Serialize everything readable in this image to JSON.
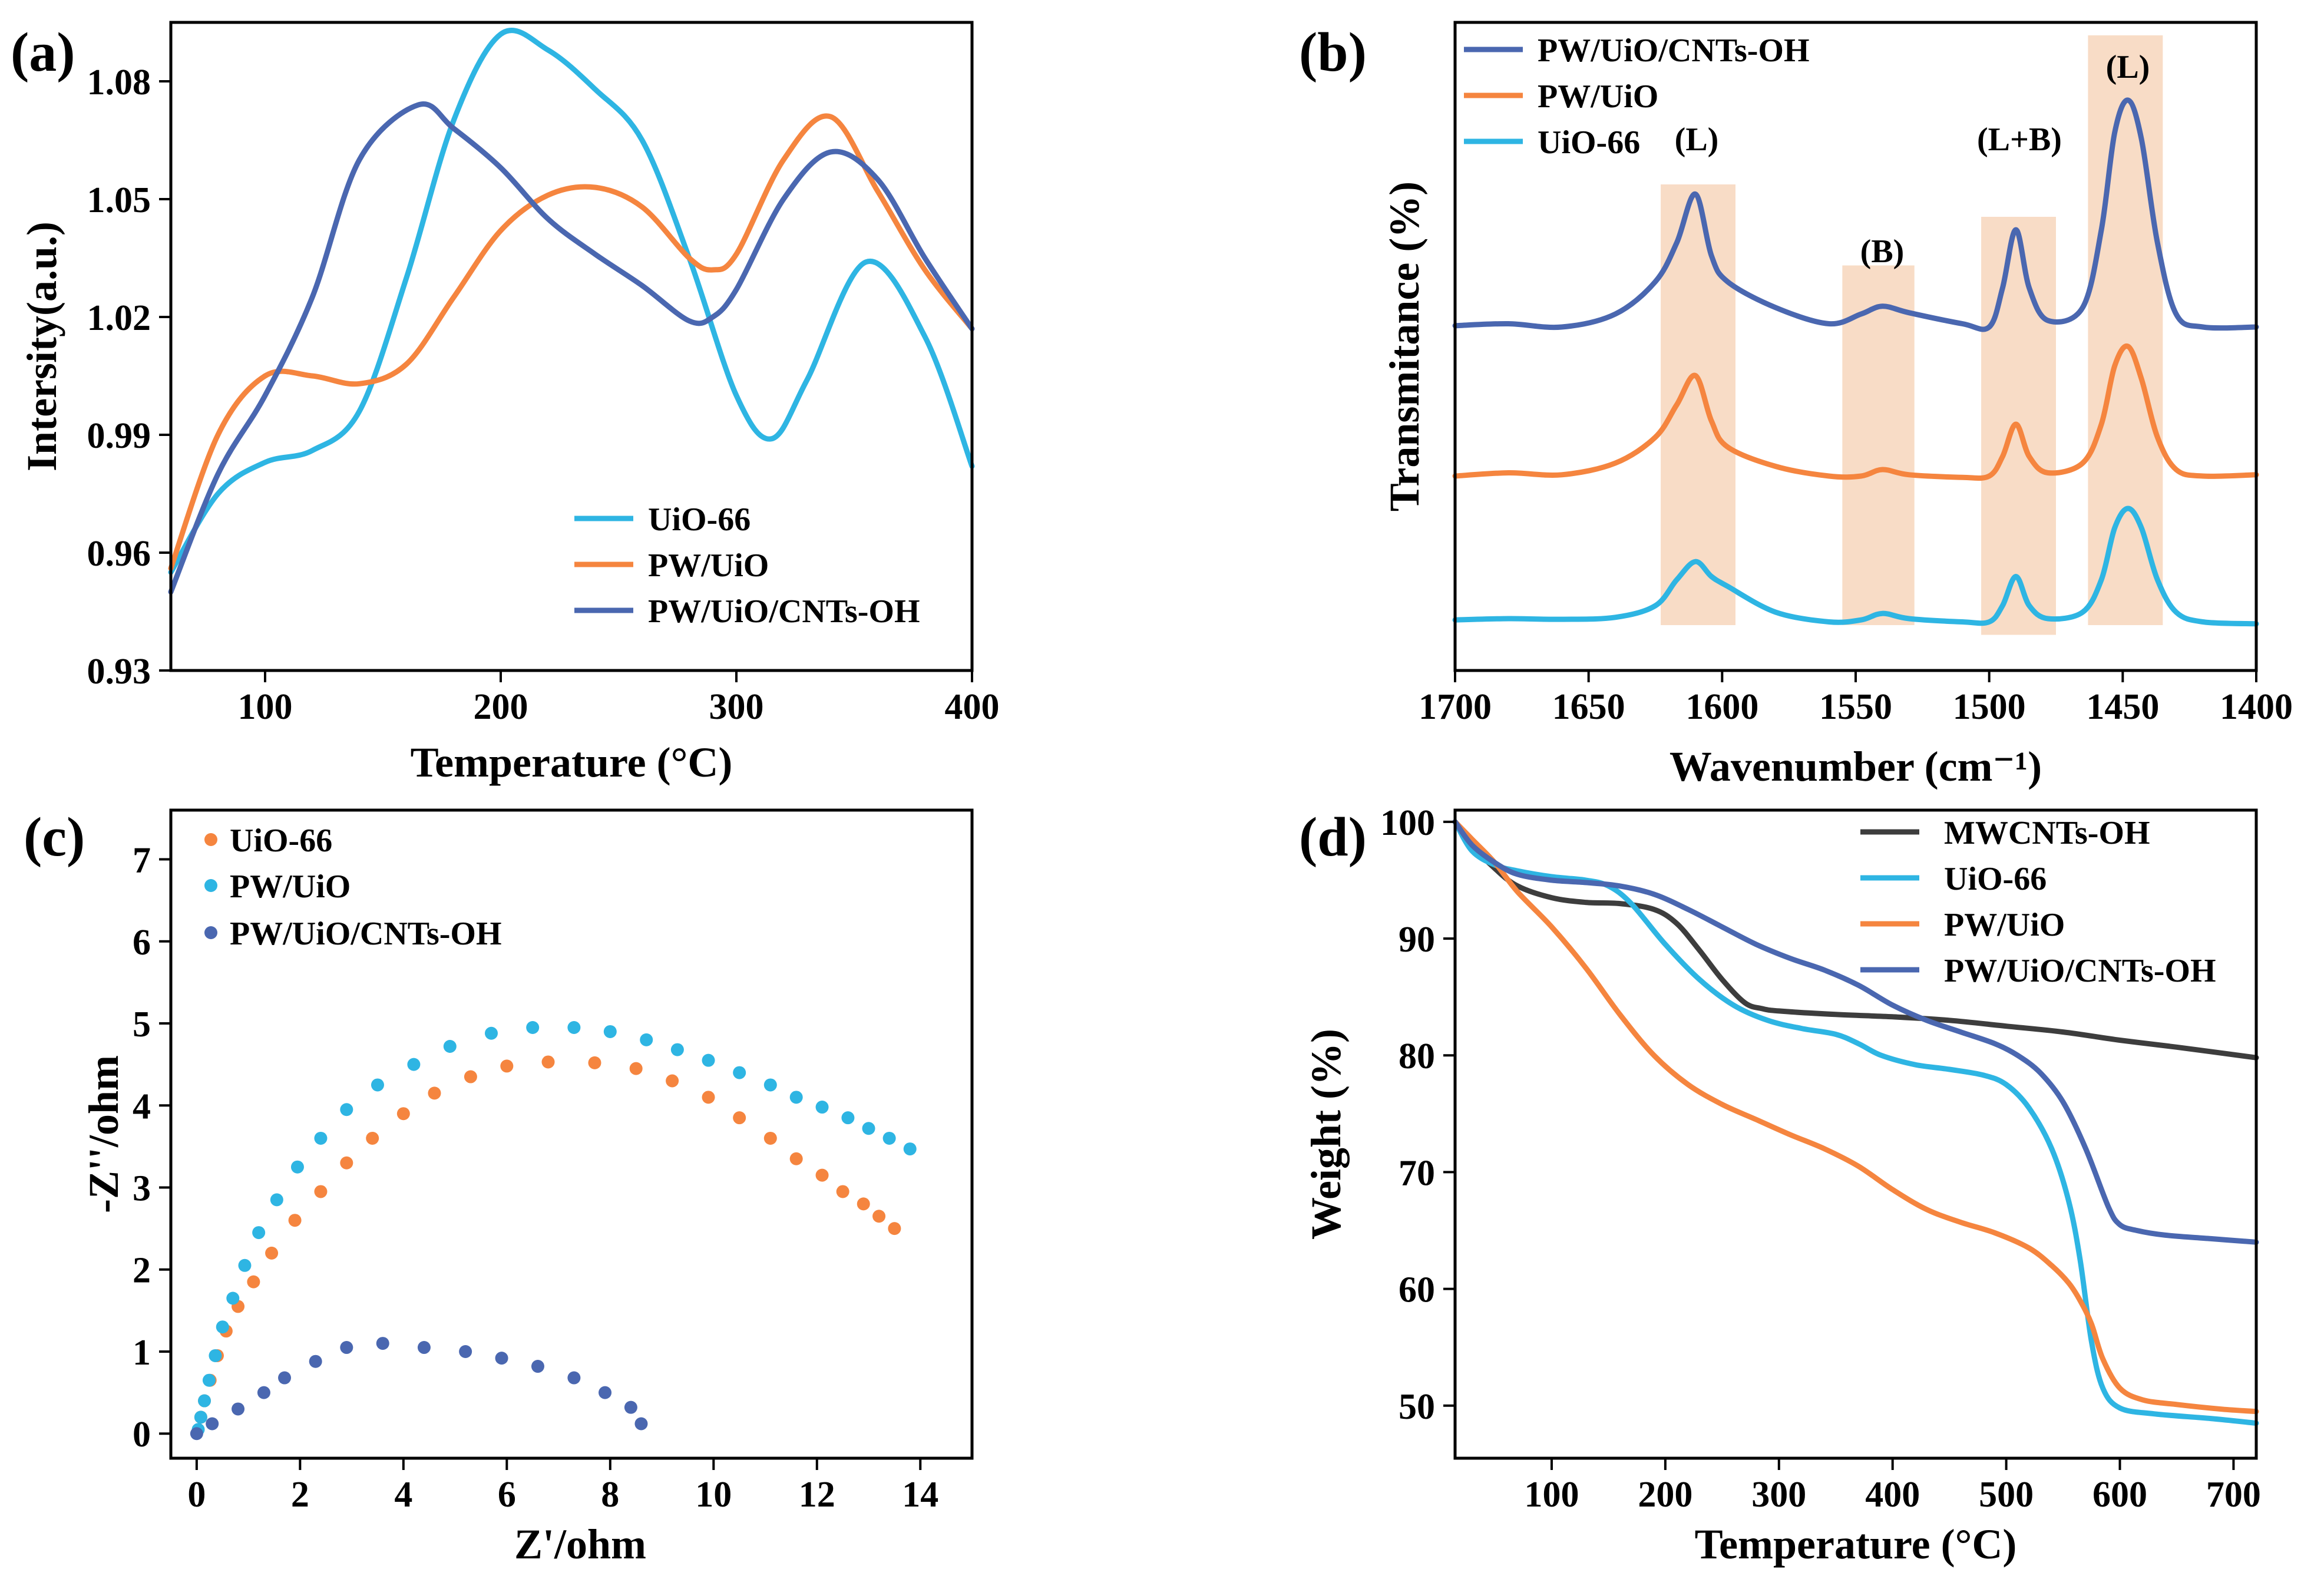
{
  "colors": {
    "cyan": "#2eb5e3",
    "orange": "#f5853f",
    "blue": "#4a67b0",
    "dark": "#3d3d3d",
    "band": "#f8dcc6"
  },
  "chart_data": [
    {
      "panel": "(a)",
      "type": "line",
      "xlabel": "Temperature (°C)",
      "ylabel": "Intersity(a.u.)",
      "xlim": [
        60,
        400
      ],
      "ylim": [
        0.93,
        1.095
      ],
      "xticks": [
        100,
        200,
        300,
        400
      ],
      "xtick_labels": [
        "100",
        "200",
        "300",
        "400"
      ],
      "yticks": [
        0.93,
        0.96,
        0.99,
        1.02,
        1.05,
        1.08
      ],
      "ytick_labels": [
        "0.93",
        "0.96",
        "0.99",
        "1.02",
        "1.05",
        "1.08"
      ],
      "legend_position": "bottom-right",
      "series": [
        {
          "name": "UiO-66",
          "color": "#2eb5e3",
          "x": [
            60,
            80,
            100,
            120,
            140,
            160,
            180,
            200,
            220,
            240,
            260,
            280,
            300,
            315,
            330,
            355,
            380,
            400
          ],
          "y": [
            0.955,
            0.975,
            0.983,
            0.986,
            0.996,
            1.03,
            1.07,
            1.092,
            1.088,
            1.078,
            1.065,
            1.035,
            1.0,
            0.989,
            1.004,
            1.034,
            1.015,
            0.982
          ]
        },
        {
          "name": "PW/UiO",
          "color": "#f5853f",
          "x": [
            60,
            80,
            100,
            120,
            140,
            160,
            180,
            200,
            220,
            240,
            260,
            280,
            290,
            300,
            320,
            340,
            360,
            380,
            400
          ],
          "y": [
            0.956,
            0.99,
            1.005,
            1.005,
            1.003,
            1.008,
            1.025,
            1.042,
            1.051,
            1.053,
            1.048,
            1.035,
            1.032,
            1.036,
            1.06,
            1.071,
            1.052,
            1.032,
            1.017
          ]
        },
        {
          "name": "PW/UiO/CNTs-OH",
          "color": "#4a67b0",
          "x": [
            60,
            80,
            100,
            120,
            140,
            165,
            180,
            200,
            220,
            240,
            260,
            280,
            290,
            300,
            320,
            340,
            360,
            380,
            400
          ],
          "y": [
            0.95,
            0.98,
            1.0,
            1.025,
            1.06,
            1.074,
            1.068,
            1.058,
            1.045,
            1.036,
            1.028,
            1.019,
            1.02,
            1.027,
            1.05,
            1.062,
            1.055,
            1.035,
            1.017
          ]
        }
      ]
    },
    {
      "panel": "(b)",
      "type": "line",
      "xlabel": "Wavenumber (cm⁻¹)",
      "ylabel": "Transmitance (%)",
      "xlim": [
        1700,
        1400
      ],
      "ylim": [
        0,
        1
      ],
      "xticks": [
        1700,
        1650,
        1600,
        1550,
        1500,
        1450,
        1400
      ],
      "xtick_labels": [
        "1700",
        "1650",
        "1600",
        "1550",
        "1500",
        "1450",
        "1400"
      ],
      "legend_position": "top-left",
      "bands": [
        {
          "from": 1623,
          "to": 1595,
          "label": "(L)"
        },
        {
          "from": 1555,
          "to": 1528,
          "label": "(B)"
        },
        {
          "from": 1503,
          "to": 1475,
          "label": "(L+B)"
        },
        {
          "from": 1463,
          "to": 1435,
          "label": "(L)"
        }
      ],
      "series": [
        {
          "name": "PW/UiO/CNTs-OH",
          "color": "#4a67b0",
          "x": [
            1700,
            1680,
            1660,
            1640,
            1625,
            1617,
            1610,
            1604,
            1598,
            1580,
            1560,
            1548,
            1540,
            1530,
            1510,
            1500,
            1495,
            1490,
            1485,
            1478,
            1465,
            1458,
            1453,
            1448,
            1443,
            1437,
            1430,
            1420,
            1400
          ],
          "y": [
            0.532,
            0.535,
            0.53,
            0.55,
            0.6,
            0.66,
            0.735,
            0.64,
            0.6,
            0.56,
            0.535,
            0.55,
            0.562,
            0.552,
            0.535,
            0.53,
            0.59,
            0.68,
            0.59,
            0.54,
            0.56,
            0.68,
            0.83,
            0.88,
            0.82,
            0.66,
            0.55,
            0.53,
            0.53
          ]
        },
        {
          "name": "PW/UiO",
          "color": "#f5853f",
          "x": [
            1700,
            1680,
            1660,
            1640,
            1625,
            1617,
            1610,
            1604,
            1598,
            1580,
            1560,
            1548,
            1540,
            1530,
            1510,
            1500,
            1495,
            1490,
            1485,
            1478,
            1465,
            1458,
            1453,
            1448,
            1443,
            1437,
            1430,
            1420,
            1400
          ],
          "y": [
            0.3,
            0.305,
            0.302,
            0.32,
            0.36,
            0.41,
            0.455,
            0.385,
            0.345,
            0.315,
            0.3,
            0.3,
            0.31,
            0.302,
            0.298,
            0.3,
            0.33,
            0.38,
            0.33,
            0.305,
            0.32,
            0.38,
            0.47,
            0.5,
            0.45,
            0.36,
            0.31,
            0.3,
            0.302
          ]
        },
        {
          "name": "UiO-66",
          "color": "#2eb5e3",
          "x": [
            1700,
            1680,
            1660,
            1640,
            1625,
            1617,
            1610,
            1604,
            1598,
            1580,
            1560,
            1548,
            1540,
            1530,
            1510,
            1500,
            1495,
            1490,
            1485,
            1478,
            1465,
            1458,
            1453,
            1448,
            1443,
            1437,
            1430,
            1420,
            1400
          ],
          "y": [
            0.078,
            0.08,
            0.079,
            0.082,
            0.1,
            0.14,
            0.168,
            0.145,
            0.13,
            0.09,
            0.075,
            0.078,
            0.088,
            0.08,
            0.075,
            0.075,
            0.1,
            0.145,
            0.1,
            0.08,
            0.09,
            0.14,
            0.22,
            0.25,
            0.22,
            0.14,
            0.09,
            0.075,
            0.072
          ]
        }
      ]
    },
    {
      "panel": "(c)",
      "type": "scatter",
      "xlabel": "Z'/ohm",
      "ylabel": "-Z''/ohm",
      "xlim": [
        -0.5,
        15
      ],
      "ylim": [
        -0.3,
        7.6
      ],
      "xticks": [
        0,
        2,
        4,
        6,
        8,
        10,
        12,
        14
      ],
      "xtick_labels": [
        "0",
        "2",
        "4",
        "6",
        "8",
        "10",
        "12",
        "14"
      ],
      "yticks": [
        0,
        1,
        2,
        3,
        4,
        5,
        6,
        7
      ],
      "ytick_labels": [
        "0",
        "1",
        "2",
        "3",
        "4",
        "5",
        "6",
        "7"
      ],
      "legend_position": "top-left",
      "series": [
        {
          "name": "UiO-66",
          "color": "#f5853f",
          "x": [
            0.08,
            0.15,
            0.26,
            0.4,
            0.57,
            0.8,
            1.1,
            1.45,
            1.9,
            2.4,
            2.9,
            3.4,
            4.0,
            4.6,
            5.3,
            6.0,
            6.8,
            7.7,
            8.5,
            9.2,
            9.9,
            10.5,
            11.1,
            11.6,
            12.1,
            12.5,
            12.9,
            13.2,
            13.5
          ],
          "y": [
            0.2,
            0.4,
            0.65,
            0.95,
            1.25,
            1.55,
            1.85,
            2.2,
            2.6,
            2.95,
            3.3,
            3.6,
            3.9,
            4.15,
            4.35,
            4.48,
            4.53,
            4.52,
            4.45,
            4.3,
            4.1,
            3.85,
            3.6,
            3.35,
            3.15,
            2.95,
            2.8,
            2.65,
            2.5
          ]
        },
        {
          "name": "PW/UiO",
          "color": "#2eb5e3",
          "x": [
            0.03,
            0.08,
            0.15,
            0.24,
            0.36,
            0.5,
            0.7,
            0.93,
            1.2,
            1.55,
            1.95,
            2.4,
            2.9,
            3.5,
            4.2,
            4.9,
            5.7,
            6.5,
            7.3,
            8.0,
            8.7,
            9.3,
            9.9,
            10.5,
            11.1,
            11.6,
            12.1,
            12.6,
            13.0,
            13.4,
            13.8
          ],
          "y": [
            0.05,
            0.2,
            0.4,
            0.65,
            0.95,
            1.3,
            1.65,
            2.05,
            2.45,
            2.85,
            3.25,
            3.6,
            3.95,
            4.25,
            4.5,
            4.72,
            4.88,
            4.95,
            4.95,
            4.9,
            4.8,
            4.68,
            4.55,
            4.4,
            4.25,
            4.1,
            3.98,
            3.85,
            3.72,
            3.6,
            3.47
          ]
        },
        {
          "name": "PW/UiO/CNTs-OH",
          "color": "#4a67b0",
          "x": [
            0.0,
            0.3,
            0.8,
            1.3,
            1.7,
            2.3,
            2.9,
            3.6,
            4.4,
            5.2,
            5.9,
            6.6,
            7.3,
            7.9,
            8.4,
            8.6
          ],
          "y": [
            0.0,
            0.12,
            0.3,
            0.5,
            0.68,
            0.88,
            1.05,
            1.1,
            1.05,
            1.0,
            0.92,
            0.82,
            0.68,
            0.5,
            0.32,
            0.12
          ]
        }
      ]
    },
    {
      "panel": "(d)",
      "type": "line",
      "xlabel": "Temperature (°C)",
      "ylabel": "Weight (%)",
      "xlim": [
        15,
        720
      ],
      "ylim": [
        45.5,
        101
      ],
      "xticks": [
        100,
        200,
        300,
        400,
        500,
        600,
        700
      ],
      "xtick_labels": [
        "100",
        "200",
        "300",
        "400",
        "500",
        "600",
        "700"
      ],
      "yticks": [
        50,
        60,
        70,
        80,
        90,
        100
      ],
      "ytick_labels": [
        "50",
        "60",
        "70",
        "80",
        "90",
        "100"
      ],
      "legend_position": "top-right",
      "series": [
        {
          "name": "MWCNTs-OH",
          "color": "#3d3d3d",
          "x": [
            15,
            30,
            50,
            70,
            100,
            130,
            160,
            190,
            210,
            230,
            250,
            270,
            285,
            300,
            350,
            400,
            450,
            500,
            550,
            600,
            650,
            720
          ],
          "y": [
            100,
            98,
            96,
            94.5,
            93.5,
            93.1,
            93.0,
            92.5,
            91.3,
            89,
            86.5,
            84.5,
            84.0,
            83.8,
            83.5,
            83.3,
            83.0,
            82.5,
            82.0,
            81.3,
            80.7,
            79.8
          ]
        },
        {
          "name": "UiO-66",
          "color": "#2eb5e3",
          "x": [
            15,
            30,
            50,
            70,
            100,
            130,
            150,
            170,
            200,
            230,
            260,
            290,
            320,
            350,
            370,
            390,
            420,
            450,
            480,
            500,
            520,
            540,
            555,
            565,
            575,
            585,
            600,
            630,
            680,
            720
          ],
          "y": [
            100,
            97.5,
            96.3,
            95.8,
            95.3,
            95,
            94.5,
            93,
            89.5,
            86.5,
            84.3,
            83.0,
            82.3,
            81.8,
            81.0,
            80.0,
            79.2,
            78.8,
            78.3,
            77.5,
            75.5,
            72.0,
            67.5,
            62.5,
            55.5,
            51.5,
            49.8,
            49.3,
            48.9,
            48.5
          ]
        },
        {
          "name": "PW/UiO",
          "color": "#f5853f",
          "x": [
            15,
            30,
            50,
            70,
            100,
            130,
            160,
            190,
            220,
            250,
            280,
            310,
            340,
            370,
            400,
            430,
            460,
            490,
            520,
            540,
            555,
            565,
            575,
            585,
            600,
            620,
            650,
            690,
            720
          ],
          "y": [
            100,
            98.5,
            96.5,
            94,
            91,
            87.5,
            83.5,
            80,
            77.5,
            75.8,
            74.5,
            73.2,
            72,
            70.5,
            68.5,
            66.8,
            65.7,
            64.8,
            63.5,
            62,
            60.5,
            59,
            57,
            54,
            51.5,
            50.5,
            50.1,
            49.7,
            49.5
          ]
        },
        {
          "name": "PW/UiO/CNTs-OH",
          "color": "#4a67b0",
          "x": [
            15,
            30,
            50,
            70,
            100,
            130,
            160,
            190,
            220,
            250,
            280,
            310,
            340,
            370,
            400,
            430,
            460,
            490,
            510,
            530,
            550,
            570,
            590,
            600,
            615,
            640,
            680,
            720
          ],
          "y": [
            100,
            98,
            96.5,
            95.5,
            95,
            94.8,
            94.5,
            93.8,
            92.5,
            91,
            89.5,
            88.3,
            87.3,
            86,
            84.3,
            83,
            82,
            81,
            80,
            78.5,
            76,
            72,
            67,
            65.5,
            65,
            64.6,
            64.3,
            64
          ]
        }
      ]
    }
  ]
}
